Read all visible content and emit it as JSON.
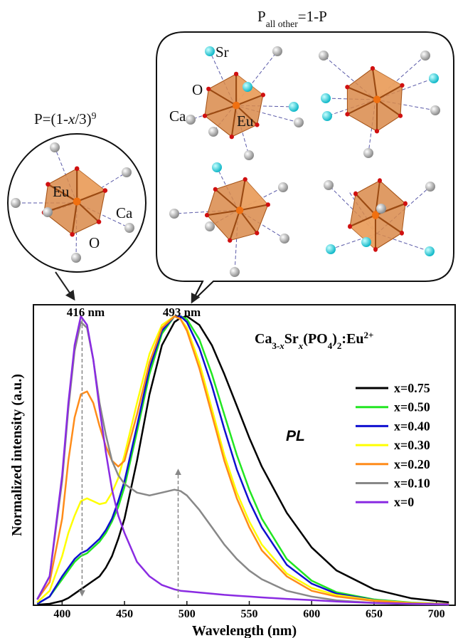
{
  "diagram": {
    "left": {
      "formula": [
        {
          "text": "P=(1-"
        },
        {
          "text": "x",
          "style": "italic"
        },
        {
          "text": "/3)"
        },
        {
          "text": "9",
          "style": "sup"
        }
      ],
      "labels": [
        "Eu",
        "Ca",
        "O"
      ]
    },
    "right": {
      "formula": [
        {
          "text": "P"
        },
        {
          "text": "all other",
          "style": "sub"
        },
        {
          "text": "=1-P"
        }
      ],
      "labels": [
        "Sr",
        "O",
        "Ca",
        "Eu"
      ]
    }
  },
  "chart_data": {
    "type": "line",
    "xlabel": "Wavelength (nm)",
    "ylabel": "Normalized intensity (a.u.)",
    "formula": [
      {
        "text": "Ca"
      },
      {
        "text": "3-",
        "style": "sub"
      },
      {
        "text": "x",
        "style": "sub-italic"
      },
      {
        "text": "Sr"
      },
      {
        "text": "x",
        "style": "sub-italic"
      },
      {
        "text": "(PO"
      },
      {
        "text": "4",
        "style": "sub"
      },
      {
        "text": ")"
      },
      {
        "text": "2",
        "style": "sub"
      },
      {
        "text": ":Eu"
      },
      {
        "text": "2+",
        "style": "sup"
      }
    ],
    "annotations": [
      {
        "text": "416 nm",
        "x": 416
      },
      {
        "text": "493 nm",
        "x": 493
      },
      {
        "text": "PL"
      }
    ],
    "legend": "right",
    "xlim": [
      377,
      715
    ],
    "ylim": [
      0,
      1.04
    ],
    "xticks": [
      400,
      450,
      500,
      550,
      600,
      650,
      700
    ],
    "x": [
      380,
      390,
      400,
      405,
      410,
      415,
      420,
      425,
      430,
      435,
      440,
      445,
      450,
      460,
      470,
      480,
      490,
      495,
      500,
      510,
      520,
      530,
      540,
      550,
      560,
      580,
      600,
      620,
      650,
      680,
      710
    ],
    "series": [
      {
        "name": "x=0.75",
        "color": "#000000",
        "values": [
          0.002,
          0.005,
          0.015,
          0.025,
          0.04,
          0.055,
          0.07,
          0.085,
          0.1,
          0.13,
          0.17,
          0.23,
          0.3,
          0.5,
          0.73,
          0.9,
          0.98,
          0.995,
          1.0,
          0.97,
          0.9,
          0.8,
          0.69,
          0.58,
          0.48,
          0.32,
          0.2,
          0.12,
          0.055,
          0.024,
          0.01
        ]
      },
      {
        "name": "x=0.50",
        "color": "#22e622",
        "values": [
          0.005,
          0.03,
          0.09,
          0.12,
          0.15,
          0.17,
          0.18,
          0.2,
          0.22,
          0.25,
          0.29,
          0.34,
          0.41,
          0.6,
          0.8,
          0.94,
          1.0,
          1.0,
          0.99,
          0.92,
          0.8,
          0.66,
          0.52,
          0.4,
          0.3,
          0.16,
          0.085,
          0.045,
          0.02,
          0.009,
          0.004
        ]
      },
      {
        "name": "x=0.40",
        "color": "#1010d0",
        "values": [
          0.005,
          0.03,
          0.1,
          0.13,
          0.16,
          0.18,
          0.19,
          0.21,
          0.23,
          0.26,
          0.3,
          0.36,
          0.43,
          0.62,
          0.82,
          0.95,
          1.0,
          1.0,
          0.98,
          0.89,
          0.76,
          0.61,
          0.47,
          0.36,
          0.27,
          0.14,
          0.075,
          0.04,
          0.018,
          0.008,
          0.004
        ]
      },
      {
        "name": "x=0.30",
        "color": "#ffff00",
        "values": [
          0.01,
          0.05,
          0.17,
          0.25,
          0.31,
          0.36,
          0.37,
          0.36,
          0.35,
          0.355,
          0.39,
          0.44,
          0.52,
          0.7,
          0.87,
          0.97,
          1.0,
          0.99,
          0.96,
          0.84,
          0.68,
          0.52,
          0.39,
          0.29,
          0.21,
          0.11,
          0.06,
          0.035,
          0.017,
          0.008,
          0.004
        ]
      },
      {
        "name": "x=0.20",
        "color": "#ff8c1a",
        "values": [
          0.02,
          0.08,
          0.3,
          0.5,
          0.65,
          0.73,
          0.74,
          0.7,
          0.62,
          0.55,
          0.5,
          0.48,
          0.5,
          0.66,
          0.84,
          0.96,
          1.0,
          0.99,
          0.95,
          0.82,
          0.66,
          0.5,
          0.37,
          0.27,
          0.19,
          0.1,
          0.05,
          0.03,
          0.015,
          0.007,
          0.004
        ]
      },
      {
        "name": "x=0.10",
        "color": "#888888",
        "values": [
          0.02,
          0.1,
          0.43,
          0.68,
          0.88,
          0.98,
          0.96,
          0.85,
          0.7,
          0.59,
          0.5,
          0.45,
          0.42,
          0.39,
          0.38,
          0.39,
          0.4,
          0.395,
          0.38,
          0.33,
          0.27,
          0.21,
          0.16,
          0.12,
          0.09,
          0.05,
          0.03,
          0.017,
          0.008,
          0.004,
          0.002
        ]
      },
      {
        "name": "x=0",
        "color": "#8a2be2",
        "values": [
          0.02,
          0.1,
          0.45,
          0.7,
          0.9,
          1.0,
          0.97,
          0.85,
          0.68,
          0.53,
          0.4,
          0.31,
          0.25,
          0.15,
          0.1,
          0.07,
          0.055,
          0.05,
          0.048,
          0.044,
          0.04,
          0.036,
          0.033,
          0.03,
          0.027,
          0.022,
          0.018,
          0.013,
          0.008,
          0.005,
          0.003
        ]
      }
    ]
  }
}
